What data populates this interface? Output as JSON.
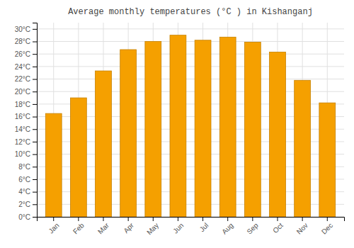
{
  "chart_data": {
    "type": "bar",
    "title": "Average monthly temperatures (°C ) in Kishanganj",
    "categories": [
      "Jan",
      "Feb",
      "Mar",
      "Apr",
      "May",
      "Jun",
      "Jul",
      "Aug",
      "Sep",
      "Oct",
      "Nov",
      "Dec"
    ],
    "values": [
      16.5,
      19.0,
      23.3,
      26.7,
      28.0,
      29.0,
      28.2,
      28.7,
      27.9,
      26.3,
      21.8,
      18.2
    ],
    "color": "#F5A000",
    "ylim": [
      0,
      31
    ],
    "yticks": [
      {
        "value": 0,
        "label": "0°C"
      },
      {
        "value": 2,
        "label": "2°C"
      },
      {
        "value": 4,
        "label": "4°C"
      },
      {
        "value": 6,
        "label": "6°C"
      },
      {
        "value": 8,
        "label": "8°C"
      },
      {
        "value": 10,
        "label": "10°C"
      },
      {
        "value": 12,
        "label": "12°C"
      },
      {
        "value": 14,
        "label": "14°C"
      },
      {
        "value": 16,
        "label": "16°C"
      },
      {
        "value": 18,
        "label": "18°C"
      },
      {
        "value": 20,
        "label": "20°C"
      },
      {
        "value": 22,
        "label": "22°C"
      },
      {
        "value": 24,
        "label": "24°C"
      },
      {
        "value": 26,
        "label": "26°C"
      },
      {
        "value": 28,
        "label": "28°C"
      },
      {
        "value": 30,
        "label": "30°C"
      }
    ],
    "grid": true
  }
}
